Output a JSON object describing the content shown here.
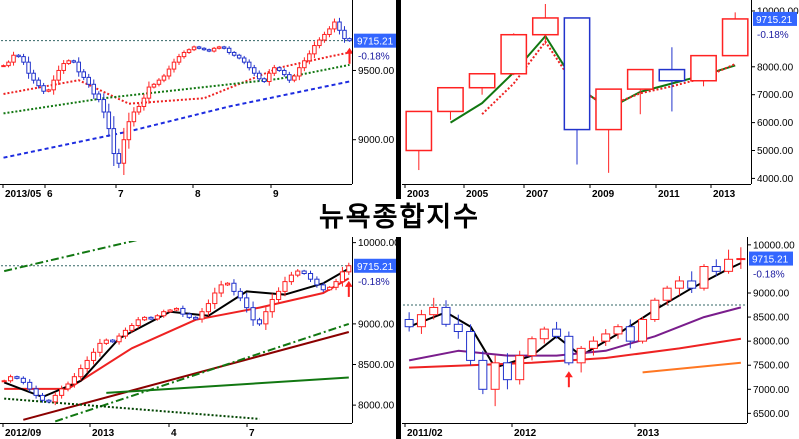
{
  "page_title": "뉴욕종합지수",
  "colors": {
    "price_box": "#3366ff",
    "up": "#ff2222",
    "down": "#2233cc",
    "ma_red": "#ee2222",
    "ma_green": "#117711",
    "ma_purple": "#7a1d8c",
    "ma_blue_dashed": "#1d2ce0",
    "ma_orange": "#ff7722",
    "ref_line": "#336666"
  },
  "chart_data": [
    {
      "id": "daily",
      "type": "candlestick",
      "x_ticks": [
        "2013/05",
        "6",
        "7",
        "8",
        "9"
      ],
      "y_ticks": [
        "9500.00",
        "9000.00"
      ],
      "ylim": [
        8680,
        9980
      ],
      "price_label": "9715.21",
      "change_label": "-0.18%",
      "reference_level": 9715.21,
      "closes": [
        9535,
        9560,
        9610,
        9600,
        9560,
        9480,
        9430,
        9390,
        9350,
        9360,
        9430,
        9500,
        9550,
        9570,
        9560,
        9490,
        9450,
        9400,
        9330,
        9290,
        9200,
        9080,
        8900,
        8830,
        9000,
        9130,
        9200,
        9240,
        9300,
        9380,
        9400,
        9430,
        9460,
        9510,
        9560,
        9600,
        9630,
        9650,
        9670,
        9660,
        9650,
        9640,
        9660,
        9670,
        9660,
        9630,
        9610,
        9590,
        9560,
        9520,
        9480,
        9440,
        9420,
        9480,
        9520,
        9500,
        9470,
        9430,
        9460,
        9520,
        9570,
        9620,
        9680,
        9720,
        9760,
        9800,
        9850,
        9790,
        9730,
        9715
      ],
      "overlays": [
        {
          "style": "dotted",
          "color": "ma_red",
          "values": [
            [
              0,
              9330
            ],
            [
              15,
              9430
            ],
            [
              25,
              9260
            ],
            [
              40,
              9300
            ],
            [
              55,
              9520
            ],
            [
              65,
              9600
            ],
            [
              69,
              9630
            ]
          ]
        },
        {
          "style": "dotted",
          "color": "ma_green",
          "values": [
            [
              0,
              9190
            ],
            [
              20,
              9300
            ],
            [
              40,
              9380
            ],
            [
              55,
              9440
            ],
            [
              69,
              9540
            ]
          ]
        },
        {
          "style": "dashed",
          "color": "ma_blue_dashed",
          "values": [
            [
              0,
              8870
            ],
            [
              25,
              9060
            ],
            [
              45,
              9240
            ],
            [
              69,
              9420
            ]
          ]
        }
      ],
      "marker": {
        "type": "up-arrow",
        "index": 69
      }
    },
    {
      "id": "yearly",
      "type": "candlestick",
      "x_ticks": [
        "2003",
        "2005",
        "2007",
        "2009",
        "2011",
        "2013"
      ],
      "y_ticks": [
        "10000.00",
        "8000.00",
        "7000.00",
        "6000.00",
        "5000.00",
        "4000.00"
      ],
      "ylim": [
        3800,
        10250
      ],
      "price_label": "9715.21",
      "change_label": "-0.18%",
      "candles": [
        {
          "x": "2003",
          "o": 5000,
          "h": 6400,
          "l": 4300,
          "c": 6400
        },
        {
          "x": "2004",
          "o": 6400,
          "h": 7250,
          "l": 6100,
          "c": 7250
        },
        {
          "x": "2005",
          "o": 7250,
          "h": 7700,
          "l": 7000,
          "c": 7750
        },
        {
          "x": "2006",
          "o": 7750,
          "h": 9200,
          "l": 7700,
          "c": 9150
        },
        {
          "x": "2007",
          "o": 9150,
          "h": 10250,
          "l": 8800,
          "c": 9750
        },
        {
          "x": "2008",
          "o": 9750,
          "h": 9750,
          "l": 4500,
          "c": 5750
        },
        {
          "x": "2009",
          "o": 5750,
          "h": 7200,
          "l": 4200,
          "c": 7200
        },
        {
          "x": "2010",
          "o": 7200,
          "h": 7850,
          "l": 6300,
          "c": 7900
        },
        {
          "x": "2011",
          "o": 7900,
          "h": 8700,
          "l": 6400,
          "c": 7500
        },
        {
          "x": "2012",
          "o": 7500,
          "h": 8400,
          "l": 7300,
          "c": 8400
        },
        {
          "x": "2013",
          "o": 8400,
          "h": 9950,
          "l": 8400,
          "c": 9715
        }
      ],
      "overlays": [
        {
          "style": "solid",
          "color": "ma_green",
          "values": [
            [
              1,
              6000
            ],
            [
              2,
              6700
            ],
            [
              3,
              7800
            ],
            [
              4,
              9100
            ],
            [
              5,
              7300
            ],
            [
              6,
              6500
            ],
            [
              7,
              7100
            ],
            [
              8,
              7400
            ],
            [
              9,
              7700
            ],
            [
              10,
              8050
            ]
          ]
        },
        {
          "style": "dotted",
          "color": "ma_red",
          "values": [
            [
              2,
              6300
            ],
            [
              3,
              7400
            ],
            [
              4,
              8900
            ],
            [
              5,
              7200
            ],
            [
              6,
              6600
            ],
            [
              7,
              7050
            ],
            [
              8,
              7300
            ],
            [
              9,
              7600
            ],
            [
              10,
              8100
            ]
          ]
        }
      ]
    },
    {
      "id": "weekly",
      "type": "candlestick",
      "x_ticks": [
        "2012/09",
        "2013",
        "4",
        "7"
      ],
      "y_ticks": [
        "10000.00",
        "9000.00",
        "8500.00",
        "8000.00"
      ],
      "ylim": [
        7780,
        10020
      ],
      "price_label": "9715.21",
      "change_label": "-0.18%",
      "reference_level": 9715.21,
      "closes": [
        8300,
        8350,
        8330,
        8280,
        8200,
        8120,
        8060,
        8040,
        8120,
        8200,
        8260,
        8350,
        8450,
        8550,
        8650,
        8760,
        8800,
        8780,
        8850,
        8920,
        8980,
        9050,
        9080,
        9060,
        9100,
        9150,
        9170,
        9190,
        9120,
        9080,
        9060,
        9150,
        9250,
        9380,
        9480,
        9500,
        9400,
        9320,
        9200,
        9050,
        9000,
        9150,
        9300,
        9400,
        9520,
        9600,
        9650,
        9620,
        9550,
        9480,
        9420,
        9450,
        9520,
        9640,
        9715
      ],
      "overlays": [
        {
          "style": "solid",
          "color": "ma_red",
          "values": [
            [
              0,
              8200
            ],
            [
              10,
              8200
            ],
            [
              20,
              8700
            ],
            [
              30,
              9050
            ],
            [
              40,
              9200
            ],
            [
              50,
              9380
            ],
            [
              54,
              9560
            ]
          ]
        },
        {
          "style": "solid",
          "color": "#000000",
          "values": [
            [
              0,
              8280
            ],
            [
              6,
              8100
            ],
            [
              12,
              8300
            ],
            [
              18,
              8820
            ],
            [
              26,
              9150
            ],
            [
              32,
              9100
            ],
            [
              38,
              9400
            ],
            [
              44,
              9360
            ],
            [
              50,
              9500
            ],
            [
              54,
              9680
            ]
          ]
        },
        {
          "style": "solid",
          "color": "#8b0000",
          "values": [
            [
              3,
              7820
            ],
            [
              54,
              8900
            ]
          ]
        },
        {
          "style": "solid",
          "color": "ma_green",
          "values": [
            [
              16,
              8150
            ],
            [
              54,
              8340
            ]
          ]
        },
        {
          "style": "dashdot",
          "color": "ma_green",
          "values": [
            [
              0,
              9650
            ],
            [
              30,
              10200
            ]
          ]
        },
        {
          "style": "dashdot",
          "color": "ma_green",
          "values": [
            [
              8,
              7800
            ],
            [
              54,
              9000
            ]
          ]
        },
        {
          "style": "dotted",
          "color": "#004400",
          "values": [
            [
              0,
              8080
            ],
            [
              40,
              7830
            ]
          ]
        }
      ],
      "marker": {
        "type": "up-arrow",
        "index": 54
      }
    },
    {
      "id": "monthly",
      "type": "candlestick",
      "x_ticks": [
        "2011/02",
        "2012",
        "2013"
      ],
      "y_ticks": [
        "10000.00",
        "9000.00",
        "8500.00",
        "8000.00",
        "7500.00",
        "7000.00",
        "6500.00"
      ],
      "ylim": [
        6300,
        10080
      ],
      "price_label": "9715.21",
      "change_label": "-0.18%",
      "reference_level": 8750,
      "candles": [
        {
          "o": 8450,
          "h": 8600,
          "l": 8200,
          "c": 8300
        },
        {
          "o": 8300,
          "h": 8650,
          "l": 8150,
          "c": 8550
        },
        {
          "o": 8550,
          "h": 8900,
          "l": 8450,
          "c": 8700
        },
        {
          "o": 8700,
          "h": 8850,
          "l": 8300,
          "c": 8350
        },
        {
          "o": 8350,
          "h": 8550,
          "l": 8050,
          "c": 8200
        },
        {
          "o": 8200,
          "h": 8350,
          "l": 7500,
          "c": 7600
        },
        {
          "o": 7600,
          "h": 7800,
          "l": 6900,
          "c": 7000
        },
        {
          "o": 7000,
          "h": 7700,
          "l": 6650,
          "c": 7550
        },
        {
          "o": 7550,
          "h": 7750,
          "l": 7000,
          "c": 7200
        },
        {
          "o": 7200,
          "h": 7800,
          "l": 7100,
          "c": 7700
        },
        {
          "o": 7700,
          "h": 8100,
          "l": 7600,
          "c": 8050
        },
        {
          "o": 8050,
          "h": 8300,
          "l": 7950,
          "c": 8250
        },
        {
          "o": 8250,
          "h": 8400,
          "l": 8050,
          "c": 8100
        },
        {
          "o": 8100,
          "h": 8200,
          "l": 7500,
          "c": 7550
        },
        {
          "o": 7550,
          "h": 7900,
          "l": 7350,
          "c": 7850
        },
        {
          "o": 7850,
          "h": 8100,
          "l": 7700,
          "c": 8000
        },
        {
          "o": 8000,
          "h": 8250,
          "l": 7900,
          "c": 8150
        },
        {
          "o": 8150,
          "h": 8350,
          "l": 8050,
          "c": 8300
        },
        {
          "o": 8300,
          "h": 8450,
          "l": 7850,
          "c": 8000
        },
        {
          "o": 8000,
          "h": 8500,
          "l": 7950,
          "c": 8450
        },
        {
          "o": 8450,
          "h": 8900,
          "l": 8400,
          "c": 8850
        },
        {
          "o": 8850,
          "h": 9150,
          "l": 8750,
          "c": 9100
        },
        {
          "o": 9100,
          "h": 9350,
          "l": 8950,
          "c": 9250
        },
        {
          "o": 9250,
          "h": 9450,
          "l": 9000,
          "c": 9100
        },
        {
          "o": 9100,
          "h": 9600,
          "l": 9050,
          "c": 9550
        },
        {
          "o": 9550,
          "h": 9700,
          "l": 9350,
          "c": 9450
        },
        {
          "o": 9450,
          "h": 9900,
          "l": 9400,
          "c": 9700
        },
        {
          "o": 9700,
          "h": 9950,
          "l": 9500,
          "c": 9715
        }
      ],
      "overlays": [
        {
          "style": "solid",
          "color": "#000000",
          "values": [
            [
              0,
              8300
            ],
            [
              3,
              8600
            ],
            [
              5,
              8300
            ],
            [
              7,
              7450
            ],
            [
              10,
              7700
            ],
            [
              12,
              8100
            ],
            [
              14,
              7700
            ],
            [
              17,
              8150
            ],
            [
              20,
              8650
            ],
            [
              23,
              9100
            ],
            [
              26,
              9500
            ],
            [
              27,
              9620
            ]
          ]
        },
        {
          "style": "solid",
          "color": "ma_purple",
          "values": [
            [
              0,
              7600
            ],
            [
              4,
              7800
            ],
            [
              8,
              7700
            ],
            [
              12,
              7700
            ],
            [
              16,
              7800
            ],
            [
              20,
              8100
            ],
            [
              24,
              8500
            ],
            [
              27,
              8700
            ]
          ]
        },
        {
          "style": "solid",
          "color": "ma_red",
          "values": [
            [
              0,
              7450
            ],
            [
              10,
              7550
            ],
            [
              16,
              7650
            ],
            [
              22,
              7850
            ],
            [
              27,
              8050
            ]
          ]
        },
        {
          "style": "solid",
          "color": "ma_orange",
          "values": [
            [
              19,
              7350
            ],
            [
              27,
              7550
            ]
          ]
        }
      ],
      "marker": {
        "type": "up-arrow",
        "index": 13
      }
    }
  ]
}
